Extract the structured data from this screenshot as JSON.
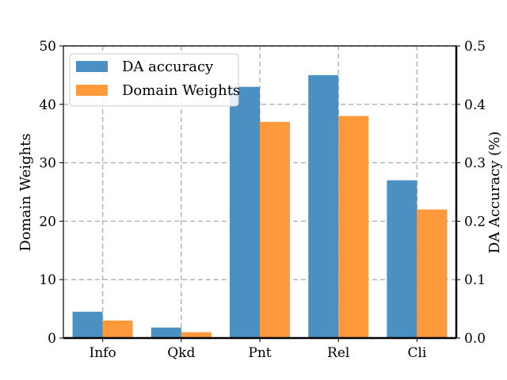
{
  "chart_data": {
    "type": "bar",
    "categories": [
      "Info",
      "Qkd",
      "Pnt",
      "Rel",
      "Cli"
    ],
    "series": [
      {
        "name": "DA accuracy",
        "axis": "right",
        "color": "#4a90c2",
        "values": [
          0.045,
          0.018,
          0.43,
          0.45,
          0.27
        ]
      },
      {
        "name": "Domain Weights",
        "axis": "left",
        "color": "#ff9a3c",
        "values": [
          3,
          1,
          37,
          38,
          22
        ]
      }
    ],
    "left_axis": {
      "label": "Domain Weights",
      "range": [
        0,
        50
      ],
      "ticks": [
        "0",
        "10",
        "20",
        "30",
        "40",
        "50"
      ]
    },
    "right_axis": {
      "label": "DA Accuracy (%)",
      "range": [
        0,
        0.5
      ],
      "ticks": [
        "0.0",
        "0.1",
        "0.2",
        "0.3",
        "0.4",
        "0.5"
      ]
    },
    "grid": true,
    "grid_style": "dashed",
    "legend_position": "top-left"
  }
}
